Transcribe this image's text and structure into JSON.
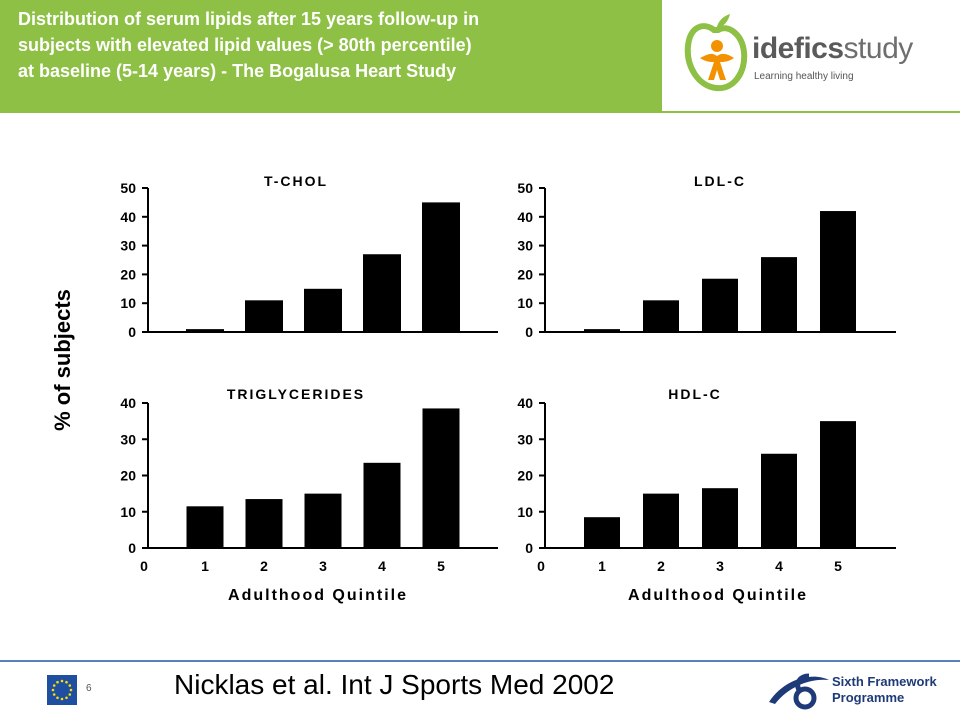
{
  "header": {
    "title_lines": [
      "Distribution of serum lipids after 15 years follow-up in",
      "subjects with elevated lipid values (> 80th percentile)",
      "at baseline (5-14 years)  - The Bogalusa Heart Study"
    ]
  },
  "logo": {
    "brand_bold": "idefics",
    "brand_light": "study",
    "tagline": "Learning healthy living"
  },
  "footer": {
    "page_number": "6",
    "citation": "Nicklas et al.  Int J Sports Med 2002",
    "programme_line1": "Sixth Framework",
    "programme_line2": "Programme"
  },
  "shared_labels": {
    "ylabel": "% of subjects",
    "xlabel": "Adulthood Quintile"
  },
  "colors": {
    "header_green": "#8dc044",
    "footer_blue": "#5b7fb8",
    "bar": "#000000"
  },
  "chart_data": [
    {
      "type": "bar",
      "title": "T-CHOL",
      "categories": [
        "1",
        "2",
        "3",
        "4",
        "5"
      ],
      "values": [
        1,
        11,
        15,
        27,
        45
      ],
      "ylim": [
        0,
        50
      ],
      "yticks": [
        0,
        10,
        20,
        30,
        40,
        50
      ],
      "xlabel": "",
      "ylabel": "% of subjects"
    },
    {
      "type": "bar",
      "title": "LDL-C",
      "categories": [
        "1",
        "2",
        "3",
        "4",
        "5"
      ],
      "values": [
        1,
        11,
        18.5,
        26,
        42
      ],
      "ylim": [
        0,
        50
      ],
      "yticks": [
        0,
        10,
        20,
        30,
        40,
        50
      ],
      "xlabel": "",
      "ylabel": "% of subjects"
    },
    {
      "type": "bar",
      "title": "TRIGLYCERIDES",
      "categories": [
        "1",
        "2",
        "3",
        "4",
        "5"
      ],
      "xticks": [
        "0",
        "1",
        "2",
        "3",
        "4",
        "5"
      ],
      "values": [
        11.5,
        13.5,
        15,
        23.5,
        38.5
      ],
      "ylim": [
        0,
        40
      ],
      "yticks": [
        0,
        10,
        20,
        30,
        40
      ],
      "xlabel": "Adulthood Quintile",
      "ylabel": "% of subjects"
    },
    {
      "type": "bar",
      "title": "HDL-C",
      "categories": [
        "1",
        "2",
        "3",
        "4",
        "5"
      ],
      "xticks": [
        "0",
        "1",
        "2",
        "3",
        "4",
        "5"
      ],
      "values": [
        8.5,
        15,
        16.5,
        26,
        35
      ],
      "ylim": [
        0,
        40
      ],
      "yticks": [
        0,
        10,
        20,
        30,
        40
      ],
      "xlabel": "Adulthood Quintile",
      "ylabel": "% of subjects"
    }
  ]
}
